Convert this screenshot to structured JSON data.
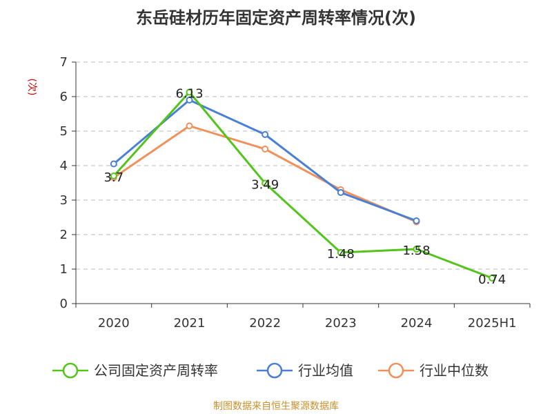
{
  "title": "东岳硅材历年固定资产周转率情况(次)",
  "source": "制图数据来自恒生聚源数据库",
  "chart_data": {
    "type": "line",
    "ylabel": "(次)",
    "ylim": [
      0,
      7
    ],
    "yticks": [
      "0",
      "1",
      "2",
      "3",
      "4",
      "5",
      "6",
      "7"
    ],
    "categories": [
      "2020",
      "2021",
      "2022",
      "2023",
      "2024",
      "2025H1"
    ],
    "grid": true,
    "legend_position": "bottom",
    "series": [
      {
        "name": "公司固定资产周转率",
        "color": "#52c41a",
        "values": [
          3.7,
          6.13,
          3.49,
          1.48,
          1.58,
          0.74
        ],
        "labels": [
          "3.7",
          "6.13",
          "3.49",
          "1.48",
          "1.58",
          "0.74"
        ]
      },
      {
        "name": "行业均值",
        "color": "#4a7fd6",
        "values": [
          4.05,
          5.9,
          4.9,
          3.22,
          2.4,
          null
        ]
      },
      {
        "name": "行业中位数",
        "color": "#f0905a",
        "values": [
          3.65,
          5.15,
          4.48,
          3.3,
          2.37,
          null
        ]
      }
    ]
  }
}
